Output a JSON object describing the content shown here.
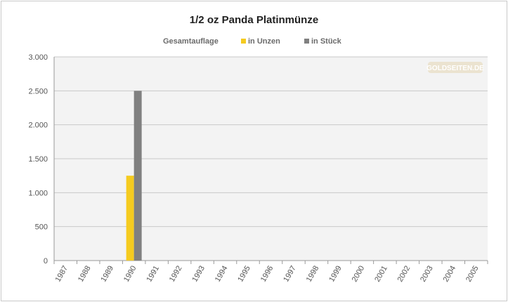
{
  "chart_data": {
    "type": "bar",
    "title": "1/2 oz Panda Platinmünze",
    "legend_title": "Gesamtauflage",
    "watermark": "GOLDSEITEN.DE",
    "categories": [
      "1987",
      "1988",
      "1989",
      "1990",
      "1991",
      "1992",
      "1993",
      "1994",
      "1995",
      "1996",
      "1997",
      "1998",
      "1999",
      "2000",
      "2001",
      "2002",
      "2003",
      "2004",
      "2005"
    ],
    "series": [
      {
        "name": "in Unzen",
        "color": "#f5cb1f",
        "values": [
          0,
          0,
          0,
          1250,
          0,
          0,
          0,
          0,
          0,
          0,
          0,
          0,
          0,
          0,
          0,
          0,
          0,
          0,
          0
        ]
      },
      {
        "name": "in Stück",
        "color": "#808080",
        "values": [
          0,
          0,
          0,
          2500,
          0,
          0,
          0,
          0,
          0,
          0,
          0,
          0,
          0,
          0,
          0,
          0,
          0,
          0,
          0
        ]
      }
    ],
    "ylim": [
      0,
      3000
    ],
    "yticks": [
      0,
      500,
      1000,
      1500,
      2000,
      2500,
      3000
    ],
    "ytick_labels": [
      "0",
      "500",
      "1.000",
      "1.500",
      "2.000",
      "2.500",
      "3.000"
    ],
    "grid": true,
    "legend_position": "top"
  }
}
